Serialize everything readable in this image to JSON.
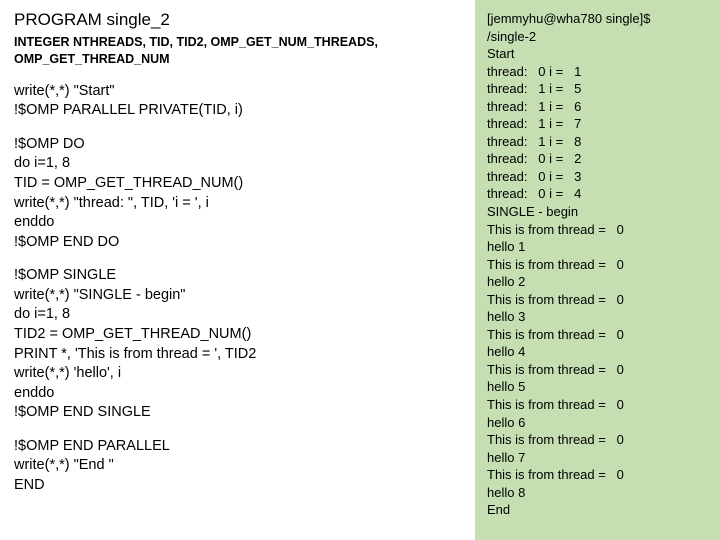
{
  "left": {
    "title": "PROGRAM single_2",
    "decl": "INTEGER NTHREADS, TID, TID2,\nOMP_GET_NUM_THREADS, OMP_GET_THREAD_NUM",
    "block1": "write(*,*) \"Start\"\n!$OMP PARALLEL PRIVATE(TID, i)",
    "block2": "!$OMP DO\ndo i=1, 8\nTID = OMP_GET_THREAD_NUM()\nwrite(*,*) \"thread: \", TID, 'i = ', i\nenddo\n!$OMP END DO",
    "block3": "!$OMP SINGLE\nwrite(*,*) \"SINGLE - begin\"\ndo i=1, 8\nTID2 = OMP_GET_THREAD_NUM()\nPRINT *, 'This is from thread = ', TID2\nwrite(*,*) 'hello', i\nenddo\n!$OMP END SINGLE",
    "block4": "!$OMP END PARALLEL\nwrite(*,*) \"End \"\nEND"
  },
  "right": {
    "bg_color": "#c5dfb3",
    "output": "[jemmyhu@wha780 single]$\n/single-2\nStart\nthread:   0 i =   1\nthread:   1 i =   5\nthread:   1 i =   6\nthread:   1 i =   7\nthread:   1 i =   8\nthread:   0 i =   2\nthread:   0 i =   3\nthread:   0 i =   4\nSINGLE - begin\nThis is from thread =   0\nhello 1\nThis is from thread =   0\nhello 2\nThis is from thread =   0\nhello 3\nThis is from thread =   0\nhello 4\nThis is from thread =   0\nhello 5\nThis is from thread =   0\nhello 6\nThis is from thread =   0\nhello 7\nThis is from thread =   0\nhello 8\nEnd"
  }
}
